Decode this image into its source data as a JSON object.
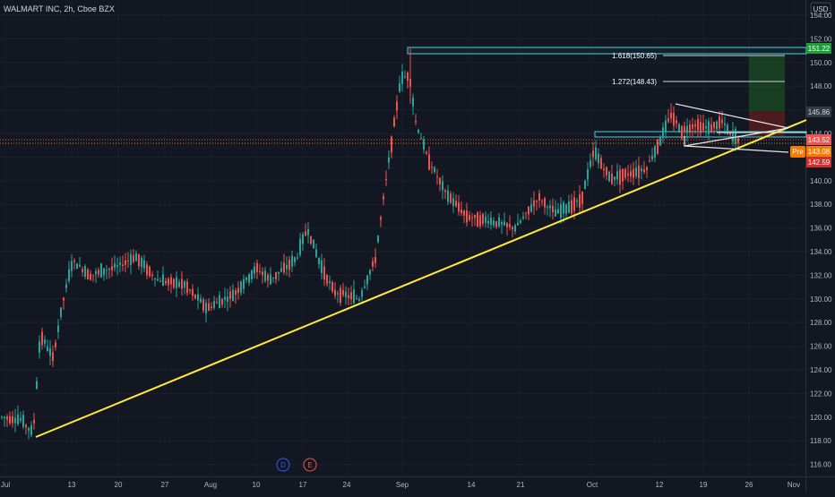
{
  "header": {
    "title": "WALMART INC, 2h, Cboe BZX",
    "currency": "USD"
  },
  "price_axis": {
    "ticks": [
      "154.00",
      "152.00",
      "150.00",
      "148.00",
      "146.00",
      "144.00",
      "142.00",
      "140.00",
      "138.00",
      "136.00",
      "134.00",
      "132.00",
      "130.00",
      "128.00",
      "126.00",
      "124.00",
      "122.00",
      "120.00",
      "118.00",
      "116.00"
    ]
  },
  "time_axis": {
    "labels": [
      "Jul",
      "13",
      "20",
      "27",
      "Aug",
      "10",
      "17",
      "24",
      "Sep",
      "14",
      "21",
      "Oct",
      "12",
      "19",
      "26",
      "Nov"
    ]
  },
  "price_labels": {
    "high": "151.22",
    "mid": "145.86",
    "current": "143.52",
    "pre_tag": "Pre",
    "pre": "143.08",
    "low": "142.59"
  },
  "fib_labels": {
    "f1618": "1.618(150.65)",
    "f1272": "1.272(148.43)"
  },
  "event_markers": {
    "dividend": "D",
    "earnings": "E"
  },
  "colors": {
    "background": "#131722",
    "up": "#26a69a",
    "down": "#ef5350",
    "trendline": "#ffeb3b",
    "zone": "#4dd0e1",
    "triangle": "#e8e8e8",
    "high_label": "#1e9e3a",
    "current_label": "#ef5350",
    "pre_label": "#f57c00",
    "low_label": "#d32f2f",
    "mid_label": "#363a45"
  },
  "chart_data": {
    "type": "candlestick",
    "title": "WALMART INC, 2h, Cboe BZX",
    "ylim": [
      115.3,
      154.6
    ],
    "x_labels": [
      "Jul",
      "13",
      "20",
      "27",
      "Aug",
      "10",
      "17",
      "24",
      "Sep",
      "14",
      "21",
      "Oct",
      "12",
      "19",
      "26",
      "Nov"
    ],
    "series": [
      {
        "name": "Price",
        "points": [
          {
            "t": "Jul",
            "v": 119.8
          },
          {
            "t": "13",
            "v": 132.6
          },
          {
            "t": "20",
            "v": 133.0
          },
          {
            "t": "27",
            "v": 130.0
          },
          {
            "t": "Aug",
            "v": 129.6
          },
          {
            "t": "10",
            "v": 132.6
          },
          {
            "t": "17",
            "v": 135.8
          },
          {
            "t": "24",
            "v": 130.4
          },
          {
            "t": "Sep",
            "v": 148.2
          },
          {
            "t": "14",
            "v": 138.0
          },
          {
            "t": "21",
            "v": 136.0
          },
          {
            "t": "Oct",
            "v": 141.2
          },
          {
            "t": "12",
            "v": 145.0
          },
          {
            "t": "19",
            "v": 144.3
          },
          {
            "t": "26",
            "v": 143.5
          }
        ]
      }
    ],
    "annotations": [
      {
        "type": "trendline",
        "from": {
          "t": "Jul",
          "v": 118.2
        },
        "to": {
          "t": "Nov",
          "v": 145.0
        }
      },
      {
        "type": "fib",
        "label": "1.618(150.65)",
        "value": 150.65
      },
      {
        "type": "fib",
        "label": "1.272(148.43)",
        "value": 148.43
      },
      {
        "type": "level",
        "label": "151.22",
        "value": 151.22
      },
      {
        "type": "level",
        "label": "145.86",
        "value": 145.86
      },
      {
        "type": "level",
        "label": "143.52",
        "value": 143.52
      },
      {
        "type": "level",
        "label": "143.08",
        "value": 143.08
      },
      {
        "type": "level",
        "label": "142.59",
        "value": 142.59
      }
    ]
  }
}
